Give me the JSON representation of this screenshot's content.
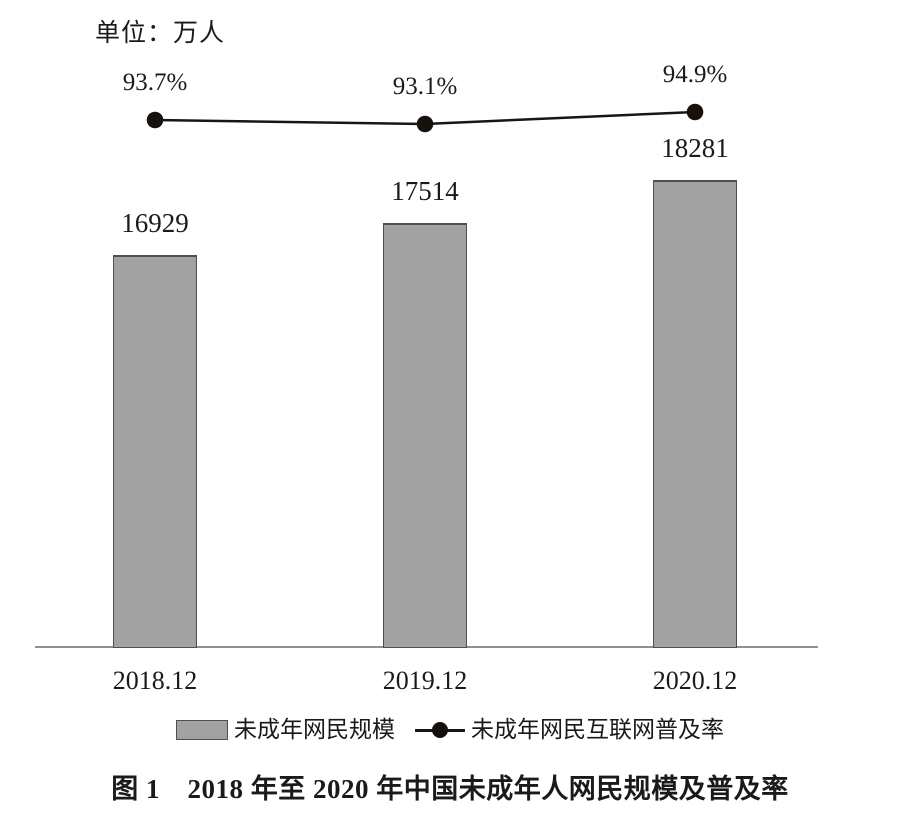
{
  "unit_label": "单位：万人",
  "legend": {
    "bar_label": "未成年网民规模",
    "line_label": "未成年网民互联网普及率"
  },
  "caption": "图 1　2018 年至 2020 年中国未成年人网民规模及普及率",
  "colors": {
    "bar_fill": "#a2a2a2",
    "bar_border": "#4f4f4f",
    "line": "#1a1512",
    "dot": "#17110e",
    "axis": "#919191",
    "text": "#1a1a1a"
  },
  "chart_data": {
    "type": "combo",
    "title": "图 1　2018 年至 2020 年中国未成年人网民规模及普及率",
    "unit_note": "单位：万人",
    "categories": [
      "2018.12",
      "2019.12",
      "2020.12"
    ],
    "series": [
      {
        "name": "未成年网民规模",
        "type": "bar",
        "unit": "万人",
        "values": [
          16929,
          17514,
          18281
        ],
        "labels": [
          "16929",
          "17514",
          "18281"
        ]
      },
      {
        "name": "未成年网民互联网普及率",
        "type": "line",
        "unit": "%",
        "values": [
          93.7,
          93.1,
          94.9
        ],
        "labels": [
          "93.7%",
          "93.1%",
          "94.9%"
        ]
      }
    ],
    "xlabel": "",
    "ylabel": "",
    "grid": false,
    "value_axis_visible": false,
    "legend_position": "bottom"
  }
}
